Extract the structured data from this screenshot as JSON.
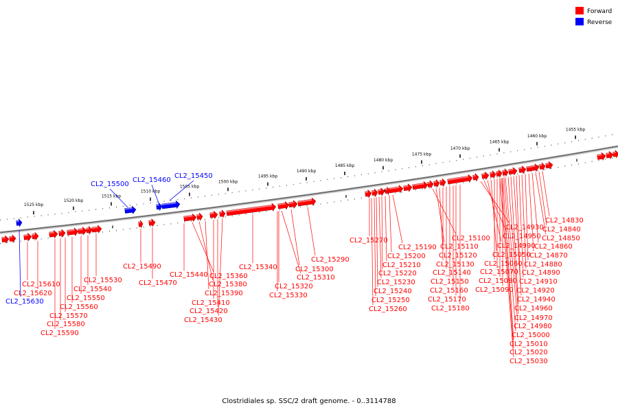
{
  "legend": {
    "forward": {
      "label": "Forward",
      "color": "#ff0000"
    },
    "reverse": {
      "label": "Reverse",
      "color": "#0000ff"
    }
  },
  "caption": "Clostridiales sp. SSC/2 draft genome. - 0..3114788",
  "kbp_ticks": [
    "1525 kbp",
    "1520 kbp",
    "1515 kbp",
    "1510 kbp",
    "1505 kbp",
    "1500 kbp",
    "1495 kbp",
    "1490 kbp",
    "1485 kbp",
    "1480 kbp",
    "1475 kbp",
    "1470 kbp",
    "1465 kbp",
    "1460 kbp",
    "1455 kbp"
  ],
  "reverse_labels": [
    "CL2_15500",
    "CL2_15460",
    "CL2_15450",
    "CL2_15630"
  ],
  "forward_labels": [
    "CL2_15610",
    "CL2_15620",
    "CL2_15530",
    "CL2_15540",
    "CL2_15550",
    "CL2_15560",
    "CL2_15570",
    "CL2_15580",
    "CL2_15590",
    "CL2_15490",
    "CL2_15470",
    "CL2_15440",
    "CL2_15360",
    "CL2_15380",
    "CL2_15390",
    "CL2_15410",
    "CL2_15420",
    "CL2_15430",
    "CL2_15340",
    "CL2_15310",
    "CL2_15300",
    "CL2_15320",
    "CL2_15330",
    "CL2_15290",
    "CL2_15270",
    "CL2_15190",
    "CL2_15200",
    "CL2_15210",
    "CL2_15220",
    "CL2_15230",
    "CL2_15240",
    "CL2_15250",
    "CL2_15260",
    "CL2_15100",
    "CL2_15110",
    "CL2_15120",
    "CL2_15130",
    "CL2_15140",
    "CL2_15150",
    "CL2_15160",
    "CL2_15170",
    "CL2_15180",
    "CL2_14930",
    "CL2_14950",
    "CL2_14990",
    "CL2_15050",
    "CL2_15060",
    "CL2_15070",
    "CL2_15080",
    "CL2_15090",
    "CL2_14830",
    "CL2_14840",
    "CL2_14850",
    "CL2_14860",
    "CL2_14870",
    "CL2_14880",
    "CL2_14890",
    "CL2_14910",
    "CL2_14920",
    "CL2_14940",
    "CL2_14960",
    "CL2_14970",
    "CL2_14980",
    "CL2_15000",
    "CL2_15010",
    "CL2_15020",
    "CL2_15030"
  ]
}
